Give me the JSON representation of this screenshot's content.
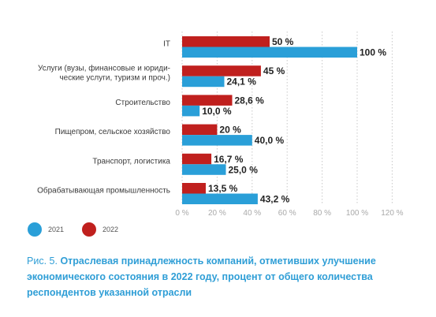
{
  "chart_data": {
    "type": "bar",
    "orientation": "horizontal",
    "categories": [
      [
        "IT"
      ],
      [
        "Услуги (вузы, финансовые и юриди-",
        "ческие услуги, туризм и проч.)"
      ],
      [
        "Строительство"
      ],
      [
        "Пищепром, сельское хозяйство"
      ],
      [
        "Транспорт, логистика"
      ],
      [
        "Обрабатывающая промышленность"
      ]
    ],
    "series": [
      {
        "name": "2022",
        "color": "#c0201e",
        "values": [
          50,
          45,
          28.6,
          20,
          16.7,
          13.5
        ],
        "labels": [
          "50 %",
          "45 %",
          "28,6 %",
          "20 %",
          "16,7 %",
          "13,5 %"
        ]
      },
      {
        "name": "2021",
        "color": "#2a9fd8",
        "values": [
          100,
          24.1,
          10.0,
          40.0,
          25.0,
          43.2
        ],
        "labels": [
          "100 %",
          "24,1 %",
          "10,0 %",
          "40,0 %",
          "25,0 %",
          "43,2 %"
        ]
      }
    ],
    "x_ticks": [
      0,
      20,
      40,
      60,
      80,
      100,
      120
    ],
    "x_tick_labels": [
      "0 %",
      "20 %",
      "40 %",
      "60 %",
      "80 %",
      "100 %",
      "120 %"
    ],
    "xlim": [
      0,
      120
    ],
    "grid": "vertical dotted",
    "legend": {
      "position": "bottom-left",
      "items": [
        {
          "label": "2021",
          "color": "#2a9fd8"
        },
        {
          "label": "2022",
          "color": "#c0201e"
        }
      ]
    }
  },
  "caption": {
    "prefix": "Рис. 5.",
    "text": "Отраслевая принадлежность компаний, отметивших улучшение экономического состояния в 2022 году, процент от общего количества респондентов указанной отрасли"
  }
}
